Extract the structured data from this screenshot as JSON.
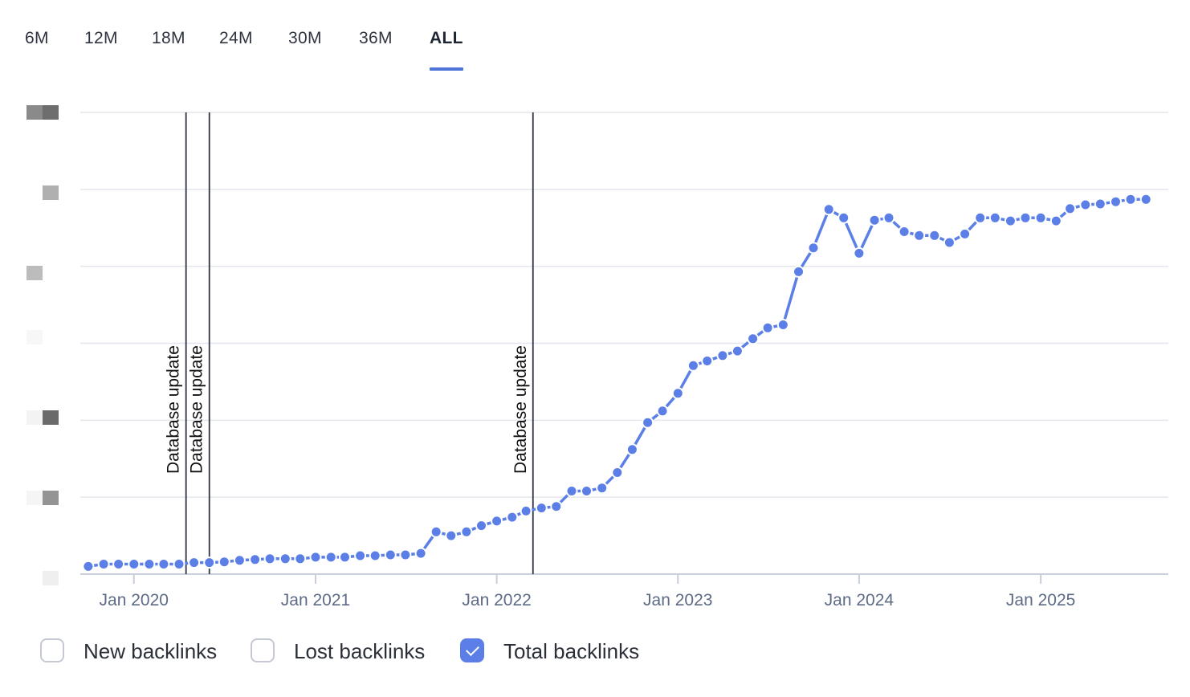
{
  "tabs": [
    {
      "label": "6M",
      "active": false
    },
    {
      "label": "12M",
      "active": false
    },
    {
      "label": "18M",
      "active": false
    },
    {
      "label": "24M",
      "active": false
    },
    {
      "label": "30M",
      "active": false
    },
    {
      "label": "36M",
      "active": false
    },
    {
      "label": "ALL",
      "active": true
    }
  ],
  "colors": {
    "accent": "#5b7fe6",
    "tab_underline": "#4f74d9",
    "gridline": "#e3e6ec",
    "annotation_line": "#2d3344"
  },
  "legend": [
    {
      "label": "New backlinks",
      "checked": false
    },
    {
      "label": "Lost backlinks",
      "checked": false
    },
    {
      "label": "Total backlinks",
      "checked": true
    }
  ],
  "chart_data": {
    "type": "line",
    "title": "",
    "xlabel": "",
    "ylabel": "",
    "y_tick_labels_redacted": true,
    "y_tick_count": 7,
    "ylim": [
      0,
      6
    ],
    "x_tick_labels": [
      "Jan 2020",
      "Jan 2021",
      "Jan 2022",
      "Jan 2023",
      "Jan 2024",
      "Jan 2025"
    ],
    "x_tick_dates": [
      "2020-01-01",
      "2021-01-01",
      "2022-01-01",
      "2023-01-01",
      "2024-01-01",
      "2025-01-01"
    ],
    "xlim": [
      "2019-09-15",
      "2025-09-15"
    ],
    "grid": true,
    "annotations": [
      {
        "date": "2020-04-15",
        "label": "Database update"
      },
      {
        "date": "2020-06-01",
        "label": "Database update"
      },
      {
        "date": "2022-03-15",
        "label": "Database update"
      }
    ],
    "series": [
      {
        "name": "Total backlinks",
        "color": "#5b7fe6",
        "x": [
          "2019-10-01",
          "2019-11-01",
          "2019-12-01",
          "2020-01-01",
          "2020-02-01",
          "2020-03-01",
          "2020-04-01",
          "2020-05-01",
          "2020-06-01",
          "2020-07-01",
          "2020-08-01",
          "2020-09-01",
          "2020-10-01",
          "2020-11-01",
          "2020-12-01",
          "2021-01-01",
          "2021-02-01",
          "2021-03-01",
          "2021-04-01",
          "2021-05-01",
          "2021-06-01",
          "2021-07-01",
          "2021-08-01",
          "2021-09-01",
          "2021-10-01",
          "2021-11-01",
          "2021-12-01",
          "2022-01-01",
          "2022-02-01",
          "2022-03-01",
          "2022-04-01",
          "2022-05-01",
          "2022-06-01",
          "2022-07-01",
          "2022-08-01",
          "2022-09-01",
          "2022-10-01",
          "2022-11-01",
          "2022-12-01",
          "2023-01-01",
          "2023-02-01",
          "2023-03-01",
          "2023-04-01",
          "2023-05-01",
          "2023-06-01",
          "2023-07-01",
          "2023-08-01",
          "2023-09-01",
          "2023-10-01",
          "2023-11-01",
          "2023-12-01",
          "2024-01-01",
          "2024-02-01",
          "2024-03-01",
          "2024-04-01",
          "2024-05-01",
          "2024-06-01",
          "2024-07-01",
          "2024-08-01",
          "2024-09-01",
          "2024-10-01",
          "2024-11-01",
          "2024-12-01",
          "2025-01-01",
          "2025-02-01",
          "2025-03-01",
          "2025-04-01",
          "2025-05-01",
          "2025-06-01",
          "2025-07-01",
          "2025-08-01"
        ],
        "values": [
          0.1,
          0.13,
          0.13,
          0.13,
          0.13,
          0.13,
          0.13,
          0.15,
          0.15,
          0.16,
          0.18,
          0.19,
          0.2,
          0.2,
          0.2,
          0.22,
          0.22,
          0.22,
          0.24,
          0.24,
          0.25,
          0.25,
          0.27,
          0.55,
          0.5,
          0.55,
          0.63,
          0.69,
          0.74,
          0.82,
          0.86,
          0.88,
          1.08,
          1.08,
          1.12,
          1.32,
          1.62,
          1.97,
          2.12,
          2.35,
          2.71,
          2.77,
          2.84,
          2.9,
          3.06,
          3.2,
          3.24,
          3.93,
          4.24,
          4.74,
          4.63,
          4.17,
          4.6,
          4.63,
          4.45,
          4.4,
          4.4,
          4.31,
          4.42,
          4.63,
          4.63,
          4.59,
          4.63,
          4.63,
          4.59,
          4.75,
          4.8,
          4.81,
          4.84,
          4.87,
          4.87
        ]
      }
    ]
  }
}
